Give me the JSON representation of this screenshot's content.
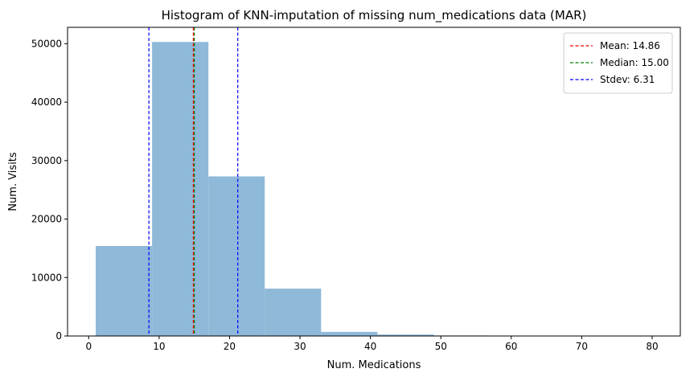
{
  "chart_data": {
    "type": "bar",
    "title": "Histogram of KNN-imputation of missing num_medications data (MAR)",
    "xlabel": "Num. Medications",
    "ylabel": "Num. Visits",
    "xlim": [
      -3,
      84
    ],
    "ylim": [
      0,
      52800
    ],
    "xticks": [
      0,
      10,
      20,
      30,
      40,
      50,
      60,
      70,
      80
    ],
    "yticks": [
      0,
      10000,
      20000,
      30000,
      40000,
      50000
    ],
    "bar_color": "#8fb9d8",
    "bins": [
      {
        "x0": 1,
        "x1": 9,
        "value": 15400
      },
      {
        "x0": 9,
        "x1": 17,
        "value": 50300
      },
      {
        "x0": 17,
        "x1": 25,
        "value": 27300
      },
      {
        "x0": 25,
        "x1": 33,
        "value": 8100
      },
      {
        "x0": 33,
        "x1": 41,
        "value": 700
      },
      {
        "x0": 41,
        "x1": 49,
        "value": 250
      },
      {
        "x0": 49,
        "x1": 57,
        "value": 80
      },
      {
        "x0": 57,
        "x1": 65,
        "value": 20
      },
      {
        "x0": 65,
        "x1": 73,
        "value": 5
      },
      {
        "x0": 73,
        "x1": 81,
        "value": 2
      }
    ],
    "reference_lines": [
      {
        "label": "Mean: 14.86",
        "x": 14.86,
        "color": "#ff0000"
      },
      {
        "label": "Median: 15.00",
        "x": 15.0,
        "color": "#008000"
      },
      {
        "label": "Stdev: 6.31",
        "x": 8.55,
        "color": "#0000ff"
      },
      {
        "label": "",
        "x": 21.17,
        "color": "#0000ff"
      }
    ],
    "legend_position": "top-right",
    "grid": false
  }
}
